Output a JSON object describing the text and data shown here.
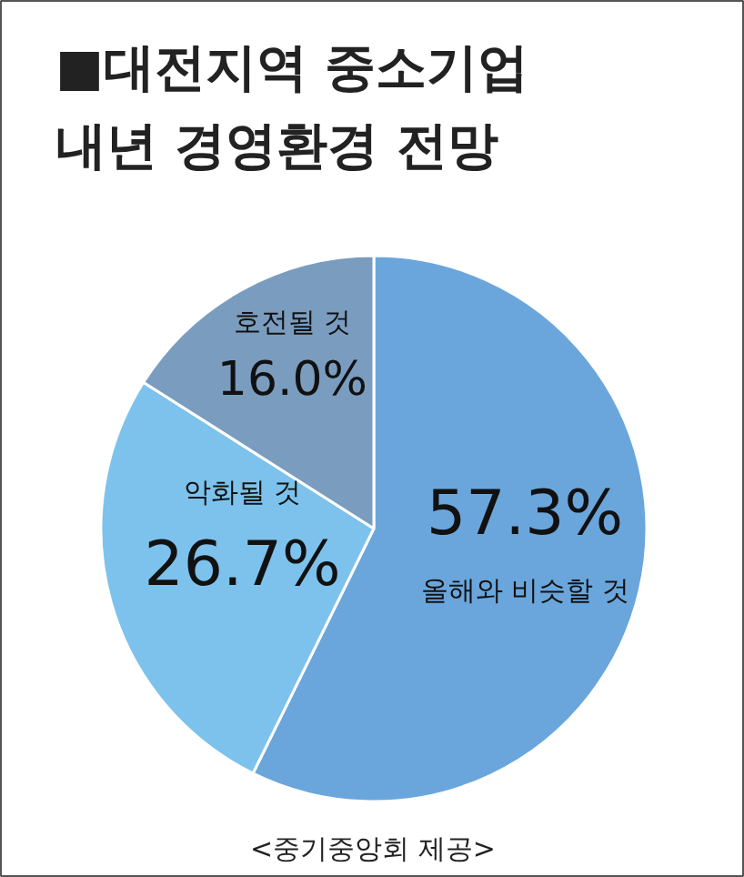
{
  "chart_data": {
    "type": "pie",
    "title": "■대전지역 중소기업\n내년 경영환경 전망",
    "categories": [
      "올해와 비슷할 것",
      "악화될 것",
      "호전될 것"
    ],
    "values": [
      57.3,
      26.7,
      16.0
    ],
    "colors": [
      "#6aa6dc",
      "#7cc2ec",
      "#7a9cbf"
    ],
    "value_labels": [
      "57.3%",
      "26.7%",
      "16.0%"
    ],
    "annotations": [
      "<중기중앙회 제공>"
    ]
  }
}
